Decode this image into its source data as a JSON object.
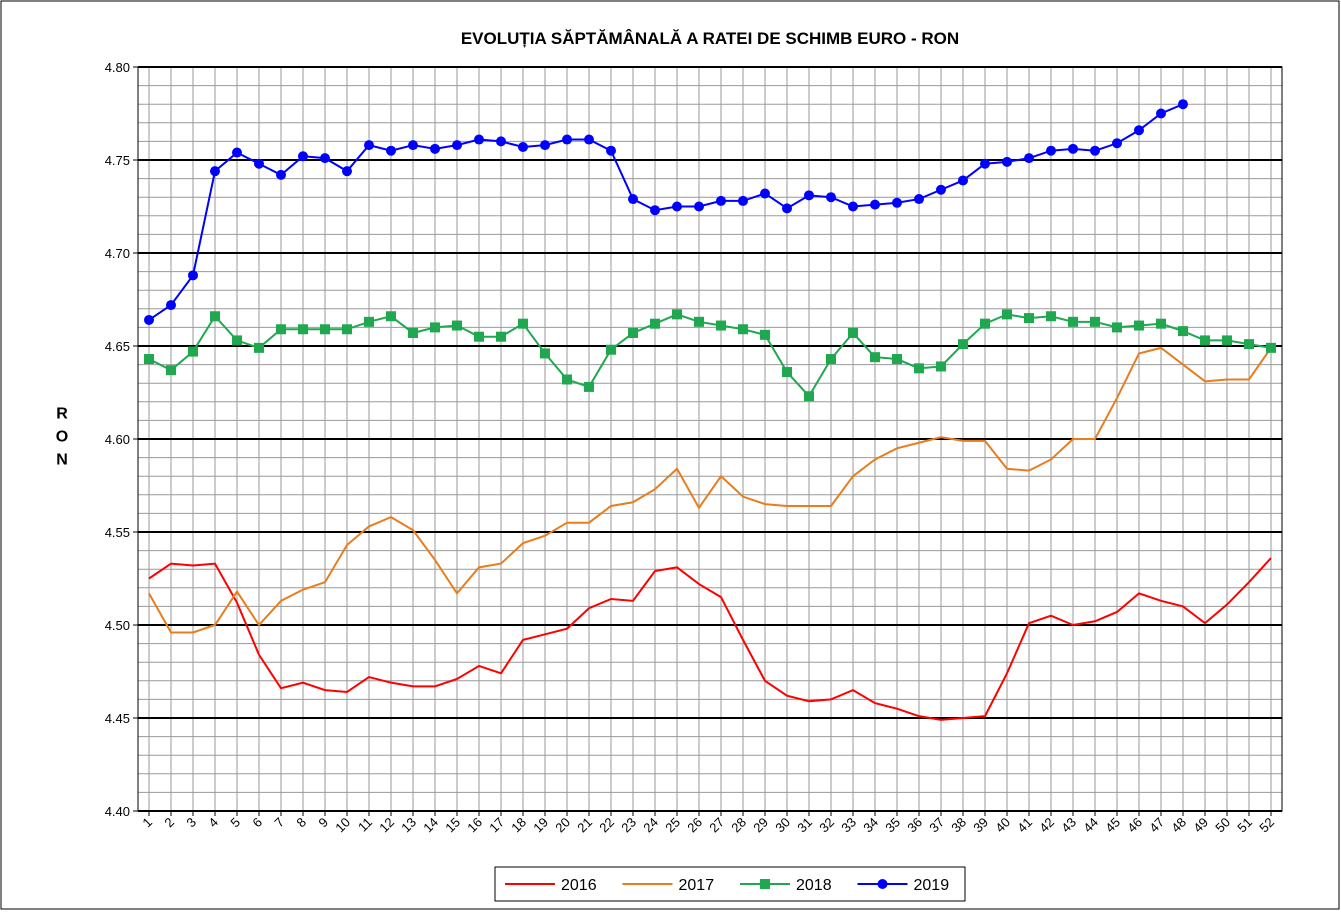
{
  "chart_data": {
    "type": "line",
    "title": "EVOLUȚIA SĂPTĂMÂNALĂ A RATEI DE SCHIMB EURO - RON",
    "y_label": "RON",
    "categories": [
      "1",
      "2",
      "3",
      "4",
      "5",
      "6",
      "7",
      "8",
      "9",
      "10",
      "11",
      "12",
      "13",
      "14",
      "15",
      "16",
      "17",
      "18",
      "19",
      "20",
      "21",
      "22",
      "23",
      "24",
      "25",
      "26",
      "27",
      "28",
      "29",
      "30",
      "31",
      "32",
      "33",
      "34",
      "35",
      "36",
      "37",
      "38",
      "39",
      "40",
      "41",
      "42",
      "43",
      "44",
      "45",
      "46",
      "47",
      "48",
      "49",
      "50",
      "51",
      "52"
    ],
    "series": [
      {
        "name": "2016",
        "color": "#ff0000",
        "marker": "none",
        "values": [
          4.525,
          4.533,
          4.532,
          4.533,
          4.512,
          4.484,
          4.466,
          4.469,
          4.465,
          4.464,
          4.472,
          4.469,
          4.467,
          4.467,
          4.471,
          4.478,
          4.474,
          4.492,
          4.495,
          4.498,
          4.509,
          4.514,
          4.513,
          4.529,
          4.531,
          4.522,
          4.515,
          4.492,
          4.47,
          4.462,
          4.459,
          4.46,
          4.465,
          4.458,
          4.455,
          4.451,
          4.449,
          4.45,
          4.451,
          4.474,
          4.501,
          4.505,
          4.5,
          4.502,
          4.507,
          4.517,
          4.513,
          4.51,
          4.501,
          4.511,
          4.523,
          4.536
        ]
      },
      {
        "name": "2017",
        "color": "#e87d1e",
        "marker": "none",
        "values": [
          4.517,
          4.496,
          4.496,
          4.5,
          4.518,
          4.5,
          4.513,
          4.519,
          4.523,
          4.543,
          4.553,
          4.558,
          4.551,
          4.535,
          4.517,
          4.531,
          4.533,
          4.544,
          4.548,
          4.555,
          4.555,
          4.564,
          4.566,
          4.573,
          4.584,
          4.563,
          4.58,
          4.569,
          4.565,
          4.564,
          4.564,
          4.564,
          4.58,
          4.589,
          4.595,
          4.598,
          4.601,
          4.599,
          4.599,
          4.584,
          4.583,
          4.589,
          4.6,
          4.6,
          4.622,
          4.646,
          4.649,
          4.64,
          4.631,
          4.632,
          4.632,
          4.649
        ]
      },
      {
        "name": "2018",
        "color": "#1fa84f",
        "marker": "square",
        "values": [
          4.643,
          4.637,
          4.647,
          4.666,
          4.653,
          4.649,
          4.659,
          4.659,
          4.659,
          4.659,
          4.663,
          4.666,
          4.657,
          4.66,
          4.661,
          4.655,
          4.655,
          4.662,
          4.646,
          4.632,
          4.628,
          4.648,
          4.657,
          4.662,
          4.667,
          4.663,
          4.661,
          4.659,
          4.656,
          4.636,
          4.623,
          4.643,
          4.657,
          4.644,
          4.643,
          4.638,
          4.639,
          4.651,
          4.662,
          4.667,
          4.665,
          4.666,
          4.663,
          4.663,
          4.66,
          4.661,
          4.662,
          4.658,
          4.653,
          4.653,
          4.651,
          4.649
        ]
      },
      {
        "name": "2019",
        "color": "#0000ff",
        "marker": "circle",
        "values": [
          4.664,
          4.672,
          4.688,
          4.744,
          4.754,
          4.748,
          4.742,
          4.752,
          4.751,
          4.744,
          4.758,
          4.755,
          4.758,
          4.756,
          4.758,
          4.761,
          4.76,
          4.757,
          4.758,
          4.761,
          4.761,
          4.755,
          4.729,
          4.723,
          4.725,
          4.725,
          4.728,
          4.728,
          4.732,
          4.724,
          4.731,
          4.73,
          4.725,
          4.726,
          4.727,
          4.729,
          4.734,
          4.739,
          4.748,
          4.749,
          4.751,
          4.755,
          4.756,
          4.755,
          4.759,
          4.766,
          4.775,
          4.78,
          null,
          null,
          null,
          null
        ]
      }
    ],
    "ylim": [
      4.4,
      4.8
    ],
    "yticks": [
      {
        "value": 4.4,
        "label": "4.40"
      },
      4.45,
      {
        "value": 4.5,
        "label": "4.50"
      },
      4.55,
      {
        "value": 4.6,
        "label": "4.60"
      },
      4.65,
      {
        "value": 4.7,
        "label": "4.70"
      },
      4.75,
      {
        "value": 4.8,
        "label": "4.80"
      }
    ],
    "y_minor_gridlines": [
      4.41,
      4.42,
      4.43,
      4.44,
      4.46,
      4.47,
      4.48,
      4.49,
      4.51,
      4.52,
      4.53,
      4.54,
      4.56,
      4.57,
      4.58,
      4.59,
      4.61,
      4.62,
      4.63,
      4.64,
      4.66,
      4.67,
      4.68,
      4.69,
      4.71,
      4.72,
      4.73,
      4.74,
      4.76,
      4.77,
      4.78,
      4.79
    ],
    "grid": true,
    "legend": "bottom"
  }
}
